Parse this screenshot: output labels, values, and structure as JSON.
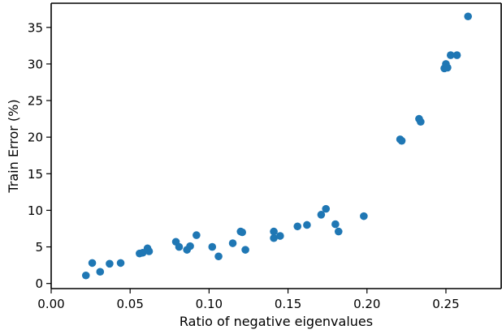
{
  "chart_data": {
    "type": "scatter",
    "xlabel": "Ratio of negative eigenvalues",
    "ylabel": "Train Error (%)",
    "xlim": [
      0.0,
      0.285
    ],
    "ylim": [
      -0.7,
      38.3
    ],
    "xticks": [
      0.0,
      0.05,
      0.1,
      0.15,
      0.2,
      0.25
    ],
    "xtick_labels": [
      "0.00",
      "0.05",
      "0.10",
      "0.15",
      "0.20",
      "0.25"
    ],
    "yticks": [
      0,
      5,
      10,
      15,
      20,
      25,
      30,
      35
    ],
    "ytick_labels": [
      "0",
      "5",
      "10",
      "15",
      "20",
      "25",
      "30",
      "35"
    ],
    "grid": false,
    "marker_color": "#1f77b4",
    "series": [
      {
        "points": [
          {
            "x": 0.022,
            "y": 1.1
          },
          {
            "x": 0.026,
            "y": 2.8
          },
          {
            "x": 0.031,
            "y": 1.6
          },
          {
            "x": 0.037,
            "y": 2.7
          },
          {
            "x": 0.044,
            "y": 2.8
          },
          {
            "x": 0.056,
            "y": 4.1
          },
          {
            "x": 0.058,
            "y": 4.2
          },
          {
            "x": 0.061,
            "y": 4.8
          },
          {
            "x": 0.062,
            "y": 4.4
          },
          {
            "x": 0.079,
            "y": 5.7
          },
          {
            "x": 0.081,
            "y": 5.0
          },
          {
            "x": 0.086,
            "y": 4.6
          },
          {
            "x": 0.088,
            "y": 5.1
          },
          {
            "x": 0.092,
            "y": 6.6
          },
          {
            "x": 0.102,
            "y": 5.0
          },
          {
            "x": 0.106,
            "y": 3.7
          },
          {
            "x": 0.115,
            "y": 5.5
          },
          {
            "x": 0.12,
            "y": 7.1
          },
          {
            "x": 0.121,
            "y": 7.0
          },
          {
            "x": 0.123,
            "y": 4.6
          },
          {
            "x": 0.141,
            "y": 6.2
          },
          {
            "x": 0.141,
            "y": 7.1
          },
          {
            "x": 0.145,
            "y": 6.5
          },
          {
            "x": 0.156,
            "y": 7.8
          },
          {
            "x": 0.162,
            "y": 8.0
          },
          {
            "x": 0.171,
            "y": 9.4
          },
          {
            "x": 0.174,
            "y": 10.2
          },
          {
            "x": 0.18,
            "y": 8.1
          },
          {
            "x": 0.182,
            "y": 7.1
          },
          {
            "x": 0.198,
            "y": 9.2
          },
          {
            "x": 0.221,
            "y": 19.7
          },
          {
            "x": 0.222,
            "y": 19.5
          },
          {
            "x": 0.233,
            "y": 22.5
          },
          {
            "x": 0.234,
            "y": 22.1
          },
          {
            "x": 0.249,
            "y": 29.4
          },
          {
            "x": 0.25,
            "y": 30.0
          },
          {
            "x": 0.251,
            "y": 29.5
          },
          {
            "x": 0.253,
            "y": 31.2
          },
          {
            "x": 0.257,
            "y": 31.2
          },
          {
            "x": 0.264,
            "y": 36.5
          }
        ]
      }
    ]
  }
}
